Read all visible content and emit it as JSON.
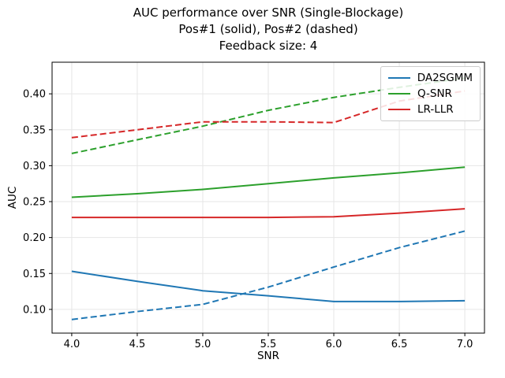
{
  "figure": {
    "background": "#ffffff",
    "title_line1": "AUC performance over SNR (Single-Blockage)",
    "title_line2": "Pos#1 (solid), Pos#2 (dashed)",
    "title_line3": "Feedback size: 4"
  },
  "chart_data": {
    "type": "line",
    "title": "AUC performance over SNR (Single-Blockage)\nPos#1 (solid), Pos#2 (dashed)\nFeedback size: 4",
    "xlabel": "SNR",
    "ylabel": "AUC",
    "x": [
      4.0,
      4.5,
      5.0,
      5.5,
      6.0,
      6.5,
      7.0
    ],
    "xlim": [
      3.85,
      7.15
    ],
    "ylim": [
      0.067,
      0.444
    ],
    "xticks": [
      4.0,
      4.5,
      5.0,
      5.5,
      6.0,
      6.5,
      7.0
    ],
    "xtick_labels": [
      "4.0",
      "4.5",
      "5.0",
      "5.5",
      "6.0",
      "6.5",
      "7.0"
    ],
    "yticks": [
      0.1,
      0.15,
      0.2,
      0.25,
      0.3,
      0.35,
      0.4
    ],
    "ytick_labels": [
      "0.10",
      "0.15",
      "0.20",
      "0.25",
      "0.30",
      "0.35",
      "0.40"
    ],
    "grid": true,
    "grid_color": "#e6e6e6",
    "legend_position": "upper right",
    "legend": [
      {
        "label": "DA2SGMM",
        "color": "#1f77b4"
      },
      {
        "label": "Q-SNR",
        "color": "#2ca02c"
      },
      {
        "label": "LR-LLR",
        "color": "#d62728"
      }
    ],
    "series": [
      {
        "name": "DA2SGMM",
        "position": "Pos#1",
        "style": "solid",
        "color": "#1f77b4",
        "values": [
          0.153,
          0.139,
          0.126,
          0.119,
          0.111,
          0.111,
          0.112
        ]
      },
      {
        "name": "DA2SGMM",
        "position": "Pos#2",
        "style": "dashed",
        "color": "#1f77b4",
        "values": [
          0.086,
          0.097,
          0.107,
          0.131,
          0.159,
          0.186,
          0.209
        ]
      },
      {
        "name": "Q-SNR",
        "position": "Pos#1",
        "style": "solid",
        "color": "#2ca02c",
        "values": [
          0.256,
          0.261,
          0.267,
          0.275,
          0.283,
          0.29,
          0.298
        ]
      },
      {
        "name": "Q-SNR",
        "position": "Pos#2",
        "style": "dashed",
        "color": "#2ca02c",
        "values": [
          0.317,
          0.336,
          0.355,
          0.377,
          0.395,
          0.409,
          0.422
        ]
      },
      {
        "name": "LR-LLR",
        "position": "Pos#1",
        "style": "solid",
        "color": "#d62728",
        "values": [
          0.228,
          0.228,
          0.228,
          0.228,
          0.229,
          0.234,
          0.24
        ]
      },
      {
        "name": "LR-LLR",
        "position": "Pos#2",
        "style": "dashed",
        "color": "#d62728",
        "values": [
          0.339,
          0.35,
          0.361,
          0.361,
          0.36,
          0.39,
          0.404
        ]
      }
    ]
  }
}
